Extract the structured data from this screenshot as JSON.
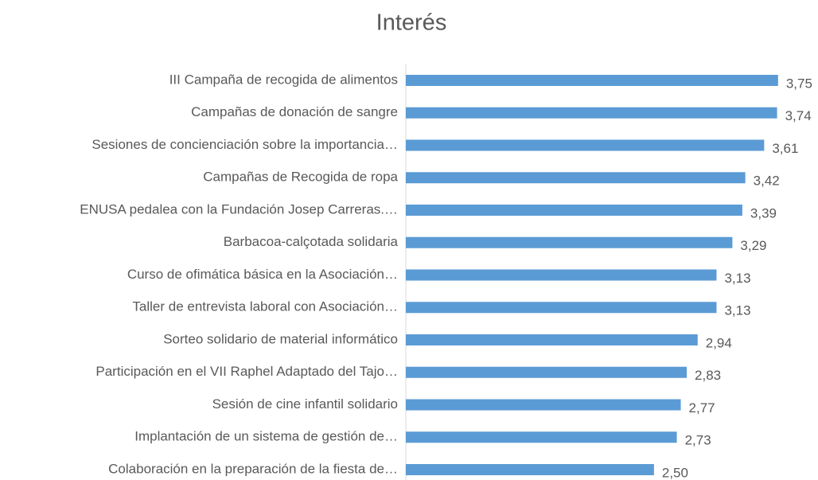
{
  "chart_data": {
    "type": "bar",
    "orientation": "horizontal",
    "title": "Interés",
    "categories": [
      "III  Campaña de recogida de alimentos",
      "Campañas de donación de sangre",
      "Sesiones de concienciación sobre la importancia…",
      "Campañas de Recogida de ropa",
      "ENUSA pedalea con la Fundación Josep Carreras.…",
      "Barbacoa-calçotada solidaria",
      "Curso de ofimática básica en la Asociación…",
      "Taller de entrevista laboral con Asociación…",
      "Sorteo solidario de material informático",
      "Participación en el VII Raphel Adaptado del Tajo…",
      "Sesión de cine infantil solidario",
      "Implantación de un sistema de gestión de…",
      "Colaboración en la preparación de la fiesta de…"
    ],
    "values": [
      3.75,
      3.74,
      3.61,
      3.42,
      3.39,
      3.29,
      3.13,
      3.13,
      2.94,
      2.83,
      2.77,
      2.73,
      2.5
    ],
    "value_labels": [
      "3,75",
      "3,74",
      "3,61",
      "3,42",
      "3,39",
      "3,29",
      "3,13",
      "3,13",
      "2,94",
      "2,83",
      "2,77",
      "2,73",
      "2,50"
    ],
    "color": "#5b9bd5",
    "xlim": [
      0,
      4
    ]
  }
}
